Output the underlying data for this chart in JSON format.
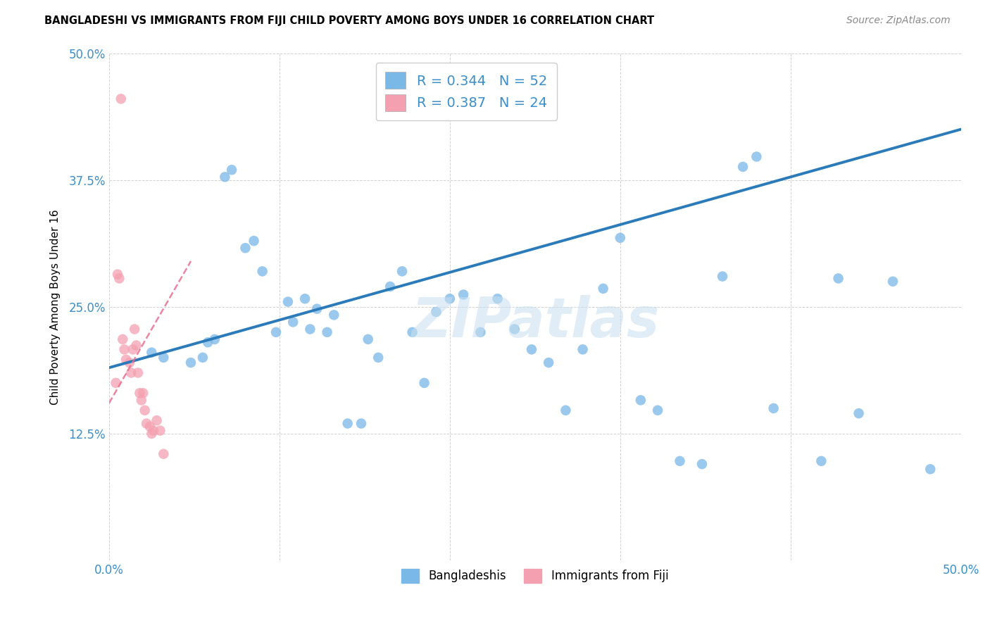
{
  "title": "BANGLADESHI VS IMMIGRANTS FROM FIJI CHILD POVERTY AMONG BOYS UNDER 16 CORRELATION CHART",
  "source": "Source: ZipAtlas.com",
  "ylabel": "Child Poverty Among Boys Under 16",
  "xlim": [
    0.0,
    0.5
  ],
  "ylim": [
    0.0,
    0.5
  ],
  "blue_R": "0.344",
  "blue_N": "52",
  "pink_R": "0.387",
  "pink_N": "24",
  "legend_label1": "Bangladeshis",
  "legend_label2": "Immigrants from Fiji",
  "blue_color": "#7ab8e8",
  "pink_color": "#f4a0b0",
  "blue_line_color": "#2b7bba",
  "pink_line_color": "#e87090",
  "grid_color": "#cccccc",
  "background_color": "#ffffff",
  "blue_trend_x": [
    0.0,
    0.5
  ],
  "blue_trend_y": [
    0.19,
    0.425
  ],
  "pink_trend_x": [
    0.0,
    0.048
  ],
  "pink_trend_y": [
    0.155,
    0.295
  ],
  "blue_x": [
    0.025,
    0.032,
    0.048,
    0.055,
    0.058,
    0.062,
    0.068,
    0.072,
    0.08,
    0.085,
    0.09,
    0.098,
    0.105,
    0.108,
    0.115,
    0.118,
    0.122,
    0.128,
    0.132,
    0.14,
    0.148,
    0.152,
    0.158,
    0.165,
    0.172,
    0.178,
    0.185,
    0.192,
    0.2,
    0.208,
    0.218,
    0.228,
    0.238,
    0.248,
    0.258,
    0.268,
    0.278,
    0.29,
    0.3,
    0.312,
    0.322,
    0.335,
    0.348,
    0.36,
    0.372,
    0.38,
    0.39,
    0.418,
    0.428,
    0.44,
    0.46,
    0.482
  ],
  "blue_y": [
    0.205,
    0.2,
    0.195,
    0.2,
    0.215,
    0.218,
    0.378,
    0.385,
    0.308,
    0.315,
    0.285,
    0.225,
    0.255,
    0.235,
    0.258,
    0.228,
    0.248,
    0.225,
    0.242,
    0.135,
    0.135,
    0.218,
    0.2,
    0.27,
    0.285,
    0.225,
    0.175,
    0.245,
    0.258,
    0.262,
    0.225,
    0.258,
    0.228,
    0.208,
    0.195,
    0.148,
    0.208,
    0.268,
    0.318,
    0.158,
    0.148,
    0.098,
    0.095,
    0.28,
    0.388,
    0.398,
    0.15,
    0.098,
    0.278,
    0.145,
    0.275,
    0.09
  ],
  "pink_x": [
    0.004,
    0.005,
    0.006,
    0.008,
    0.009,
    0.01,
    0.012,
    0.013,
    0.014,
    0.015,
    0.016,
    0.017,
    0.018,
    0.019,
    0.02,
    0.021,
    0.022,
    0.024,
    0.025,
    0.026,
    0.028,
    0.03,
    0.032,
    0.007
  ],
  "pink_y": [
    0.175,
    0.282,
    0.278,
    0.218,
    0.208,
    0.198,
    0.195,
    0.185,
    0.208,
    0.228,
    0.212,
    0.185,
    0.165,
    0.158,
    0.165,
    0.148,
    0.135,
    0.132,
    0.125,
    0.128,
    0.138,
    0.128,
    0.105,
    0.455
  ],
  "watermark": "ZIPatlas"
}
